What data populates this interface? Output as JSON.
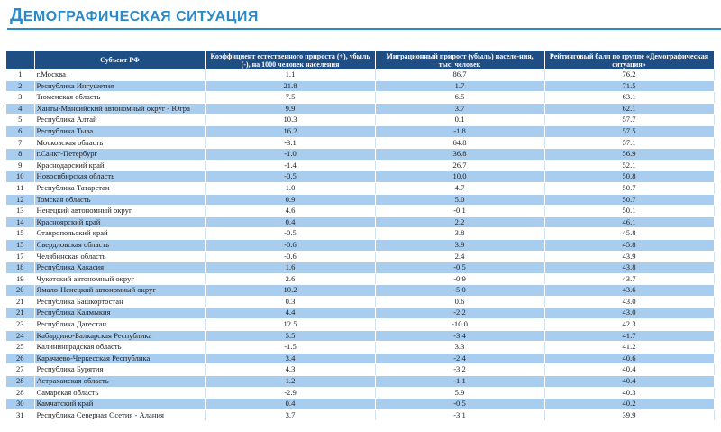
{
  "page": {
    "title_first": "Д",
    "title_rest": "емографическая ситуация"
  },
  "table": {
    "headers": [
      "",
      "Субъект РФ",
      "Коэффициент естественного прироста (+), убыль (-), на 1000 человек населения",
      "Миграционный прирост (убыль) населе-ния, тыс. человек",
      "Рейтинговый балл по группе «Демографическая ситуация»"
    ],
    "rows": [
      [
        "1",
        "г.Москва",
        "1.1",
        "86.7",
        "76.2"
      ],
      [
        "2",
        "Республика Ингушетия",
        "21.8",
        "1.7",
        "71.5"
      ],
      [
        "3",
        "Тюменская область",
        "7.5",
        "6.5",
        "63.1"
      ],
      [
        "4",
        "Ханты-Мансийский автономный округ - Югра",
        "9.9",
        "3.7",
        "62.1"
      ],
      [
        "5",
        "Республика Алтай",
        "10.3",
        "0.1",
        "57.7"
      ],
      [
        "6",
        "Республика Тыва",
        "16.2",
        "-1.8",
        "57.5"
      ],
      [
        "7",
        "Московская область",
        "-3.1",
        "64.8",
        "57.1"
      ],
      [
        "8",
        "г.Санкт-Петербург",
        "-1.0",
        "36.8",
        "56.9"
      ],
      [
        "9",
        "Краснодарский край",
        "-1.4",
        "26.7",
        "52.1"
      ],
      [
        "10",
        "Новосибирская область",
        "-0.5",
        "10.0",
        "50.8"
      ],
      [
        "11",
        "Республика Татарстан",
        "1.0",
        "4.7",
        "50.7"
      ],
      [
        "12",
        "Томская область",
        "0.9",
        "5.0",
        "50.7"
      ],
      [
        "13",
        "Ненецкий автономный округ",
        "4.6",
        "-0.1",
        "50.1"
      ],
      [
        "14",
        "Красноярский край",
        "0.4",
        "2.2",
        "46.1"
      ],
      [
        "15",
        "Ставропольский край",
        "-0.5",
        "3.8",
        "45.8"
      ],
      [
        "15",
        "Свердловская область",
        "-0.6",
        "3.9",
        "45.8"
      ],
      [
        "17",
        "Челябинская область",
        "-0.6",
        "2.4",
        "43.9"
      ],
      [
        "18",
        "Республика Хакасия",
        "1.6",
        "-0.5",
        "43.8"
      ],
      [
        "19",
        "Чукотский автономный округ",
        "2.6",
        "-0.9",
        "43.7"
      ],
      [
        "20",
        "Ямало-Ненецкий автономный округ",
        "10.2",
        "-5.0",
        "43.6"
      ],
      [
        "21",
        "Республика Башкортостан",
        "0.3",
        "0.6",
        "43.0"
      ],
      [
        "21",
        "Республика Калмыкия",
        "4.4",
        "-2.2",
        "43.0"
      ],
      [
        "23",
        "Республика Дагестан",
        "12.5",
        "-10.0",
        "42.3"
      ],
      [
        "24",
        "Кабардино-Балкарская Республика",
        "5.5",
        "-3.4",
        "41.7"
      ],
      [
        "25",
        "Калининградская область",
        "-1.5",
        "3.3",
        "41.2"
      ],
      [
        "26",
        "Карачаево-Черкесская Республика",
        "3.4",
        "-2.4",
        "40.6"
      ],
      [
        "27",
        "Республика Бурятия",
        "4.3",
        "-3.2",
        "40.4"
      ],
      [
        "28",
        "Астраханская область",
        "1.2",
        "-1.1",
        "40.4"
      ],
      [
        "28",
        "Самарская область",
        "-2.9",
        "5.9",
        "40.3"
      ],
      [
        "30",
        "Камчатский край",
        "0.4",
        "-0.5",
        "40.2"
      ],
      [
        "31",
        "Республика Северная Осетия - Алания",
        "3.7",
        "-3.1",
        "39.9"
      ]
    ]
  }
}
